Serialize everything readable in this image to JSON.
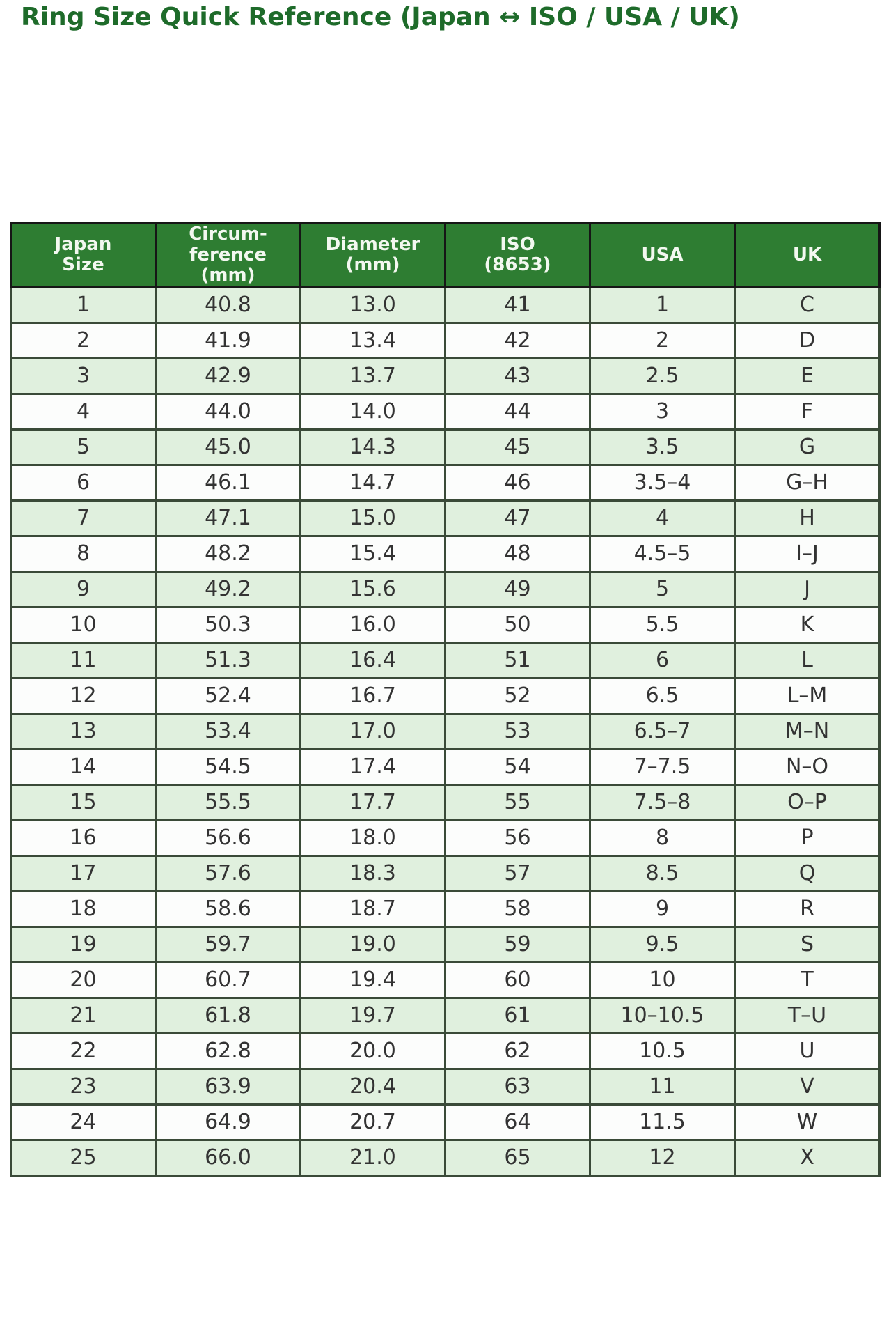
{
  "title": "Ring Size Quick Reference (Japan ↔ ISO / USA / UK)",
  "chart_data": {
    "type": "table",
    "title": "Ring Size Quick Reference (Japan ↔ ISO / USA / UK)",
    "columns": [
      "Japan\nSize",
      "Circum-\nference\n(mm)",
      "Diameter\n(mm)",
      "ISO\n(8653)",
      "USA",
      "UK"
    ],
    "rows": [
      [
        "1",
        "40.8",
        "13.0",
        "41",
        "1",
        "C"
      ],
      [
        "2",
        "41.9",
        "13.4",
        "42",
        "2",
        "D"
      ],
      [
        "3",
        "42.9",
        "13.7",
        "43",
        "2.5",
        "E"
      ],
      [
        "4",
        "44.0",
        "14.0",
        "44",
        "3",
        "F"
      ],
      [
        "5",
        "45.0",
        "14.3",
        "45",
        "3.5",
        "G"
      ],
      [
        "6",
        "46.1",
        "14.7",
        "46",
        "3.5–4",
        "G–H"
      ],
      [
        "7",
        "47.1",
        "15.0",
        "47",
        "4",
        "H"
      ],
      [
        "8",
        "48.2",
        "15.4",
        "48",
        "4.5–5",
        "I–J"
      ],
      [
        "9",
        "49.2",
        "15.6",
        "49",
        "5",
        "J"
      ],
      [
        "10",
        "50.3",
        "16.0",
        "50",
        "5.5",
        "K"
      ],
      [
        "11",
        "51.3",
        "16.4",
        "51",
        "6",
        "L"
      ],
      [
        "12",
        "52.4",
        "16.7",
        "52",
        "6.5",
        "L–M"
      ],
      [
        "13",
        "53.4",
        "17.0",
        "53",
        "6.5–7",
        "M–N"
      ],
      [
        "14",
        "54.5",
        "17.4",
        "54",
        "7–7.5",
        "N–O"
      ],
      [
        "15",
        "55.5",
        "17.7",
        "55",
        "7.5–8",
        "O–P"
      ],
      [
        "16",
        "56.6",
        "18.0",
        "56",
        "8",
        "P"
      ],
      [
        "17",
        "57.6",
        "18.3",
        "57",
        "8.5",
        "Q"
      ],
      [
        "18",
        "58.6",
        "18.7",
        "58",
        "9",
        "R"
      ],
      [
        "19",
        "59.7",
        "19.0",
        "59",
        "9.5",
        "S"
      ],
      [
        "20",
        "60.7",
        "19.4",
        "60",
        "10",
        "T"
      ],
      [
        "21",
        "61.8",
        "19.7",
        "61",
        "10–10.5",
        "T–U"
      ],
      [
        "22",
        "62.8",
        "20.0",
        "62",
        "10.5",
        "U"
      ],
      [
        "23",
        "63.9",
        "20.4",
        "63",
        "11",
        "V"
      ],
      [
        "24",
        "64.9",
        "20.7",
        "64",
        "11.5",
        "W"
      ],
      [
        "25",
        "66.0",
        "21.0",
        "65",
        "12",
        "X"
      ]
    ]
  },
  "colors": {
    "title_text": "#1e6b2a",
    "header_bg": "#2e7d32",
    "header_text": "#f3f8f0",
    "row_odd_bg": "#e0f0de",
    "row_even_bg": "#fcfdfc",
    "grid_line": "#3a4a38",
    "outer_border": "#1b1b1b",
    "cell_text": "#333333"
  }
}
